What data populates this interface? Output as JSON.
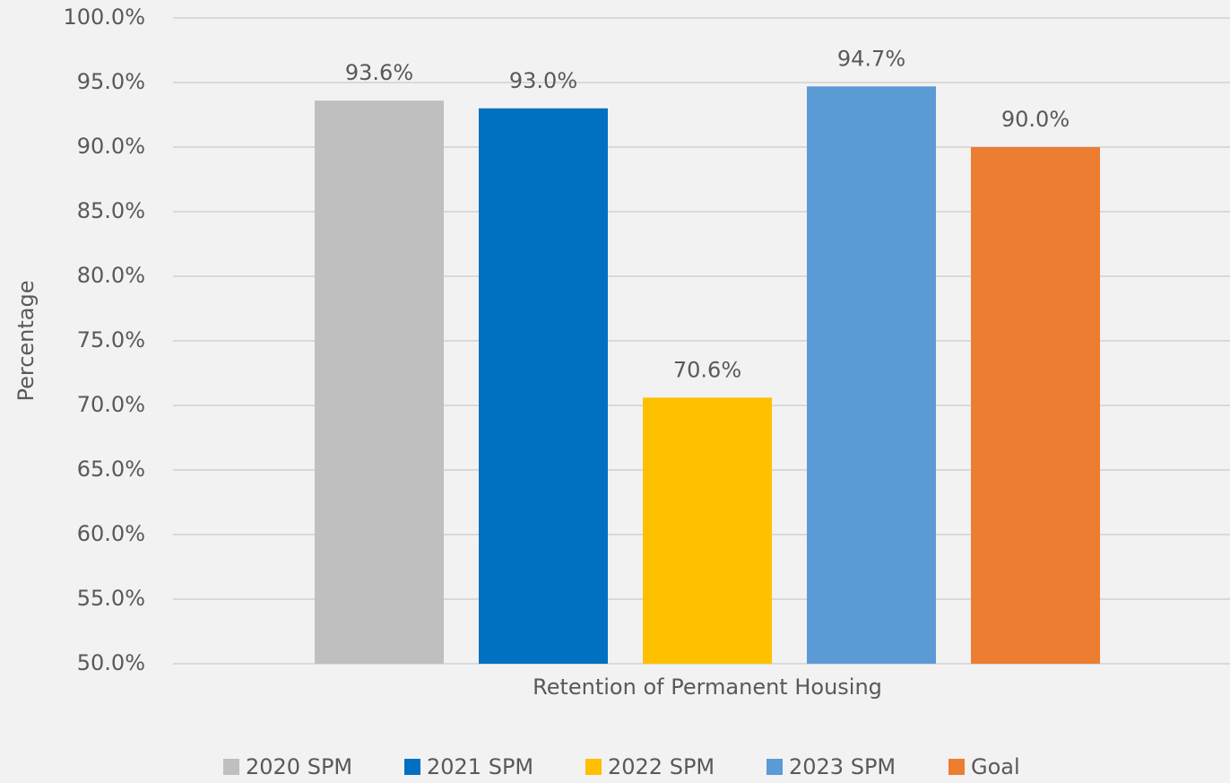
{
  "chart_data": {
    "type": "bar",
    "categories": [
      "Retention of Permanent Housing"
    ],
    "y_label": "Percentage",
    "series": [
      {
        "name": "2020 SPM",
        "color": "#bfbfbf",
        "values": [
          93.6
        ],
        "value_labels": [
          "93.6%"
        ]
      },
      {
        "name": "2021 SPM",
        "color": "#0070c0",
        "values": [
          93.0
        ],
        "value_labels": [
          "93.0%"
        ]
      },
      {
        "name": "2022 SPM",
        "color": "#ffc000",
        "values": [
          70.6
        ],
        "value_labels": [
          "70.6%"
        ]
      },
      {
        "name": "2023 SPM",
        "color": "#5b9bd5",
        "values": [
          94.7
        ],
        "value_labels": [
          "94.7%"
        ]
      },
      {
        "name": "Goal",
        "color": "#ed7d31",
        "values": [
          90.0
        ],
        "value_labels": [
          "90.0%"
        ]
      }
    ],
    "ylim": [
      50,
      100
    ],
    "yticks": [
      {
        "value": 50,
        "label": "50.0%"
      },
      {
        "value": 55,
        "label": "55.0%"
      },
      {
        "value": 60,
        "label": "60.0%"
      },
      {
        "value": 65,
        "label": "65.0%"
      },
      {
        "value": 70,
        "label": "70.0%"
      },
      {
        "value": 75,
        "label": "75.0%"
      },
      {
        "value": 80,
        "label": "80.0%"
      },
      {
        "value": 85,
        "label": "85.0%"
      },
      {
        "value": 90,
        "label": "90.0%"
      },
      {
        "value": 95,
        "label": "95.0%"
      },
      {
        "value": 100,
        "label": "100.0%"
      }
    ],
    "grid": true,
    "legend": "bottom"
  }
}
